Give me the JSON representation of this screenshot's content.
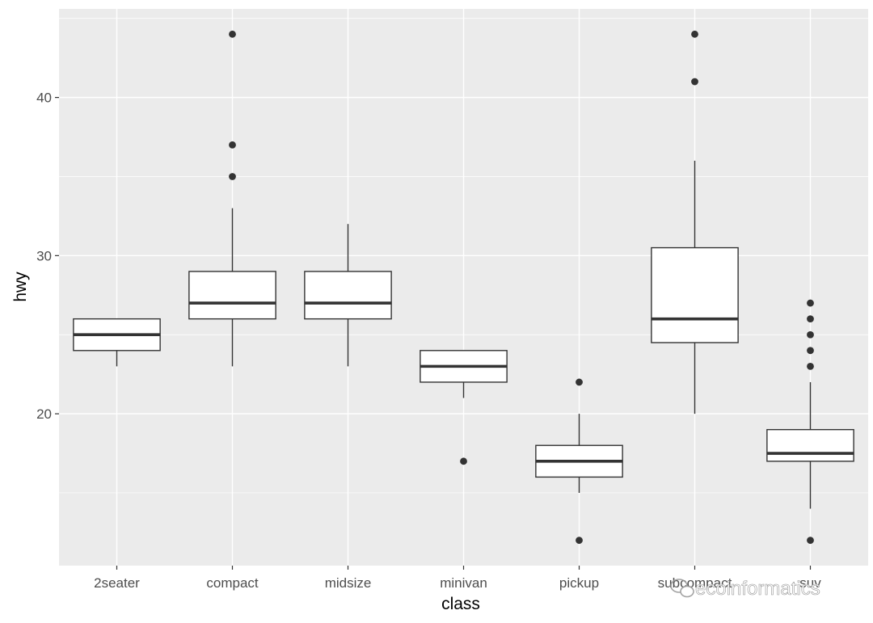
{
  "chart_data": {
    "type": "boxplot",
    "xlabel": "class",
    "ylabel": "hwy",
    "ylim": [
      10.4,
      45.6
    ],
    "yticks": [
      20,
      30,
      40
    ],
    "grid": true,
    "panel_background": "#ebebeb",
    "box_fill": "#ffffff",
    "line_color": "#333333",
    "categories": [
      "2seater",
      "compact",
      "midsize",
      "minivan",
      "pickup",
      "subcompact",
      "suv"
    ],
    "boxes": [
      {
        "q1": 24,
        "median": 25,
        "q3": 26,
        "whisker_low": 23,
        "whisker_high": 26,
        "outliers": []
      },
      {
        "q1": 26,
        "median": 27,
        "q3": 29,
        "whisker_low": 23,
        "whisker_high": 33,
        "outliers": [
          35,
          37,
          44
        ]
      },
      {
        "q1": 26,
        "median": 27,
        "q3": 29,
        "whisker_low": 23,
        "whisker_high": 32,
        "outliers": []
      },
      {
        "q1": 22,
        "median": 23,
        "q3": 24,
        "whisker_low": 21,
        "whisker_high": 24,
        "outliers": [
          17
        ]
      },
      {
        "q1": 16,
        "median": 17,
        "q3": 18,
        "whisker_low": 15,
        "whisker_high": 20,
        "outliers": [
          12,
          22
        ]
      },
      {
        "q1": 24.5,
        "median": 26,
        "q3": 30.5,
        "whisker_low": 20,
        "whisker_high": 36,
        "outliers": [
          41,
          44
        ]
      },
      {
        "q1": 17,
        "median": 17.5,
        "q3": 19,
        "whisker_low": 14,
        "whisker_high": 22,
        "outliers": [
          12,
          23,
          24,
          25,
          26,
          27
        ]
      }
    ]
  },
  "watermark": {
    "text": "ecoinformatics",
    "icon": "wechat-icon"
  }
}
